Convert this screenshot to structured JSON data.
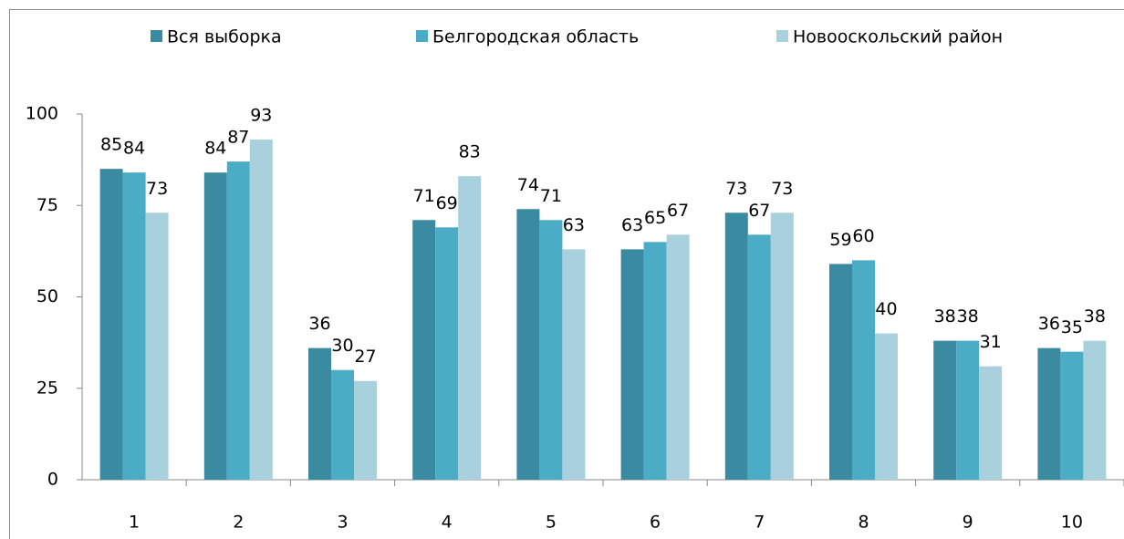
{
  "chart_data": {
    "type": "bar",
    "categories": [
      "1",
      "2",
      "3",
      "4",
      "5",
      "6",
      "7",
      "8",
      "9",
      "10"
    ],
    "series": [
      {
        "name": "Вся выборка",
        "color": "#3a8ba1",
        "values": [
          85,
          84,
          36,
          71,
          74,
          63,
          73,
          59,
          38,
          36
        ]
      },
      {
        "name": "Белгородская область",
        "color": "#4bacc6",
        "values": [
          84,
          87,
          30,
          69,
          71,
          65,
          67,
          60,
          38,
          35
        ]
      },
      {
        "name": "Новооскольский район",
        "color": "#a9d0dd",
        "values": [
          73,
          93,
          27,
          83,
          63,
          67,
          73,
          40,
          31,
          38
        ]
      }
    ],
    "ylim": [
      0,
      100
    ],
    "yticks": [
      0,
      25,
      50,
      75,
      100
    ],
    "grid": false,
    "legend": "top"
  }
}
